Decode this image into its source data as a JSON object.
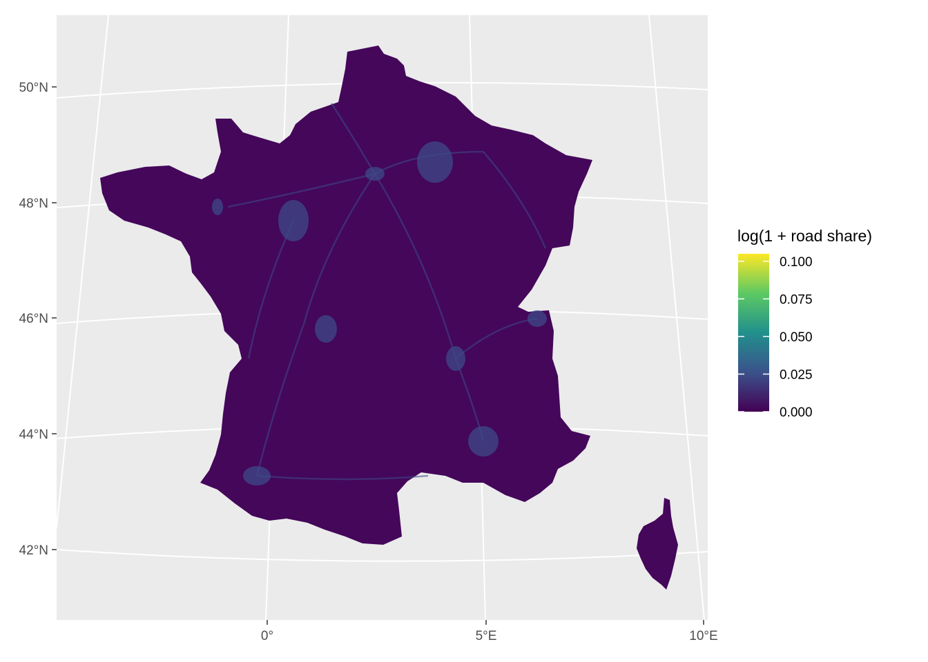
{
  "chart_data": {
    "type": "choropleth-map",
    "title": "",
    "projection": "conic",
    "region": "France",
    "latitude_ticks": [
      "42°N",
      "44°N",
      "46°N",
      "48°N",
      "50°N"
    ],
    "longitude_ticks": [
      "0°",
      "5°E",
      "10°E"
    ],
    "fill_scale": {
      "name": "log(1 + road share)",
      "palette": "viridis",
      "colors": [
        "#440154",
        "#3b528b",
        "#21908c",
        "#5dc963",
        "#fde725"
      ],
      "range": [
        0,
        0.105
      ],
      "breaks": [
        0,
        0.025,
        0.05,
        0.075,
        0.1
      ],
      "labels": [
        "0.000",
        "0.025",
        "0.050",
        "0.075",
        "0.100"
      ]
    },
    "panel_background": "#ebebeb",
    "grid_color": "#ffffff",
    "dominant_fill": "#44075a",
    "highlight_fill": "#3e4a89"
  }
}
